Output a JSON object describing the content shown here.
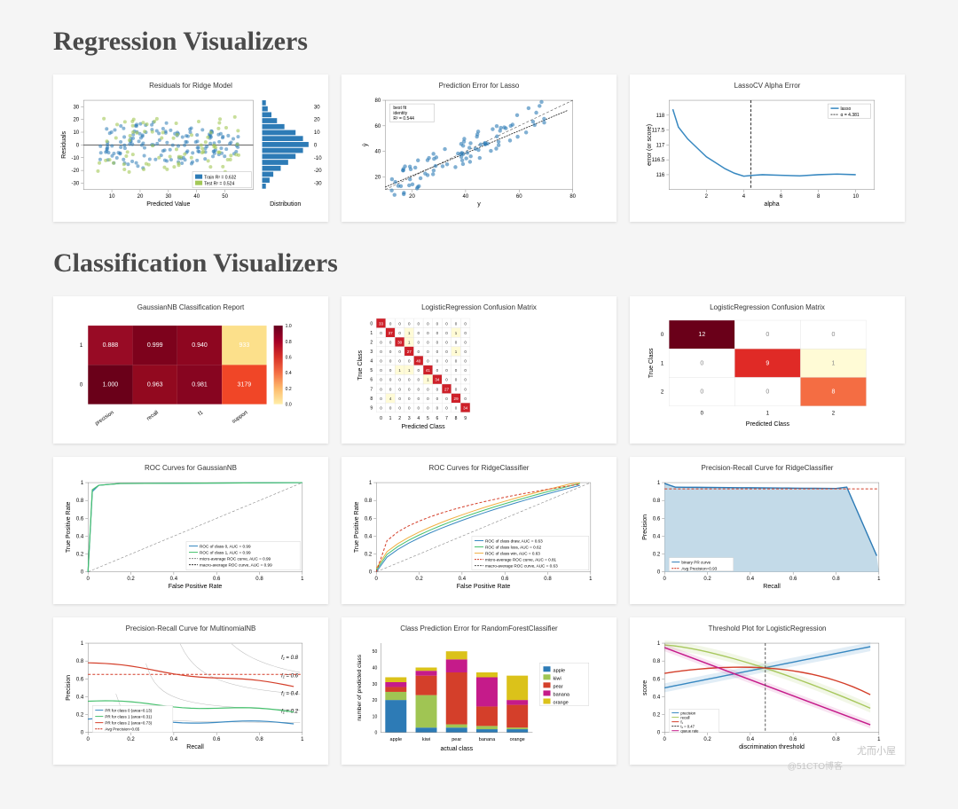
{
  "sections": {
    "regression": {
      "heading": "Regression Visualizers"
    },
    "classification": {
      "heading": "Classification Visualizers"
    }
  },
  "watermark": {
    "main": "尤而小屋",
    "sub": "@51CTO博客"
  },
  "regression_charts": {
    "residuals": {
      "type": "scatter+hist",
      "title": "Residuals for Ridge Model",
      "xlabel": "Predicted Value",
      "ylabel": "Residuals",
      "ylabel2": "Distribution",
      "xlim": [
        0,
        60
      ],
      "ylim": [
        -35,
        35
      ],
      "xticks": [
        10,
        20,
        30,
        40,
        50
      ],
      "yticks": [
        -30,
        -20,
        -10,
        0,
        10,
        20,
        30
      ],
      "train_color": "#2d7bb6",
      "test_color": "#a3c857",
      "legend": [
        "Train R² = 0.632",
        "Test R² = 0.524"
      ],
      "hist_bins": [
        2,
        3,
        5,
        8,
        12,
        18,
        22,
        25,
        22,
        18,
        14,
        10,
        6,
        4,
        2
      ]
    },
    "pred_error": {
      "type": "scatter",
      "title": "Prediction Error for Lasso",
      "xlabel": "y",
      "ylabel": "ŷ",
      "xlim": [
        10,
        80
      ],
      "ylim": [
        10,
        80
      ],
      "xticks": [
        20,
        40,
        60,
        80
      ],
      "yticks": [
        20,
        40,
        60,
        80
      ],
      "point_color": "#2d7bb6",
      "legend": [
        "best fit",
        "identity",
        "R² = 0.544"
      ]
    },
    "alpha_error": {
      "type": "line",
      "title": "LassoCV Alpha Error",
      "xlabel": "alpha",
      "ylabel": "error (or score)",
      "xlim": [
        0,
        11
      ],
      "ylim": [
        115.5,
        118.5
      ],
      "xticks": [
        2,
        4,
        6,
        8,
        10
      ],
      "yticks": [
        116,
        116.5,
        117,
        117.5,
        118
      ],
      "line_color": "#3989c1",
      "alpha_line": 4.381,
      "legend": [
        "lasso",
        "α = 4.381"
      ],
      "values": [
        [
          0.2,
          118.2
        ],
        [
          0.5,
          117.6
        ],
        [
          1,
          117.2
        ],
        [
          1.5,
          116.9
        ],
        [
          2,
          116.6
        ],
        [
          2.5,
          116.4
        ],
        [
          3,
          116.2
        ],
        [
          3.5,
          116.05
        ],
        [
          4,
          115.95
        ],
        [
          4.5,
          115.98
        ],
        [
          5,
          116.0
        ],
        [
          6,
          115.98
        ],
        [
          7,
          115.96
        ],
        [
          8,
          116.0
        ],
        [
          9,
          116.02
        ],
        [
          10,
          116.0
        ]
      ]
    }
  },
  "classification_charts": {
    "class_report": {
      "type": "heatmap",
      "title": "GaussianNB Classification Report",
      "rows": [
        [
          "0.888",
          "0.999",
          "0.940",
          "933"
        ],
        [
          "1.000",
          "0.963",
          "0.981",
          "3179"
        ]
      ],
      "cell_colors": [
        [
          "#980b25",
          "#7d021c",
          "#8e0620",
          "#fce08b"
        ],
        [
          "#6a0019",
          "#92091f",
          "#870520",
          "#f04627"
        ]
      ],
      "xlabels": [
        "precision",
        "recall",
        "f1",
        "support"
      ],
      "ylabels": [
        "1",
        "0"
      ],
      "colorbar": {
        "min": 0,
        "max": 1,
        "ticks": [
          0,
          0.2,
          0.4,
          0.6,
          0.8,
          1.0
        ],
        "colors": [
          "#ffeea8",
          "#fdbb6c",
          "#f46d43",
          "#d73027",
          "#a50026",
          "#67001f"
        ]
      }
    },
    "conf_matrix_multi": {
      "type": "confusion_matrix",
      "title": "LogisticRegression Confusion Matrix",
      "xlabel": "Predicted Class",
      "ylabel": "True Class",
      "xlabels": [
        "0",
        "1",
        "2",
        "3",
        "4",
        "5",
        "6",
        "7",
        "8",
        "9"
      ],
      "ylabels": [
        "0",
        "1",
        "2",
        "3",
        "4",
        "5",
        "6",
        "7",
        "8",
        "9"
      ],
      "cells": [
        [
          33,
          0,
          0,
          0,
          0,
          0,
          0,
          0,
          0,
          0
        ],
        [
          0,
          37,
          0,
          1,
          0,
          0,
          0,
          0,
          1,
          0
        ],
        [
          0,
          0,
          30,
          1,
          0,
          0,
          0,
          0,
          0,
          0
        ],
        [
          0,
          0,
          0,
          27,
          0,
          0,
          0,
          0,
          1,
          0
        ],
        [
          0,
          0,
          0,
          0,
          40,
          0,
          0,
          0,
          0,
          0
        ],
        [
          0,
          0,
          1,
          1,
          0,
          41,
          0,
          0,
          0,
          0
        ],
        [
          0,
          0,
          0,
          0,
          0,
          1,
          34,
          0,
          0,
          0
        ],
        [
          0,
          0,
          0,
          0,
          0,
          0,
          0,
          27,
          0,
          0
        ],
        [
          0,
          4,
          0,
          0,
          0,
          0,
          0,
          0,
          29,
          0
        ],
        [
          0,
          0,
          0,
          0,
          0,
          0,
          0,
          0,
          0,
          34
        ]
      ],
      "diag_color": "#ce2029",
      "off_color": "#fffbd6",
      "zero_color": "#ffffff"
    },
    "conf_matrix_3": {
      "type": "confusion_matrix",
      "title": "LogisticRegression Confusion Matrix",
      "xlabel": "Predicted Class",
      "ylabel": "True Class",
      "xlabels": [
        "0",
        "1",
        "2"
      ],
      "ylabels": [
        "0",
        "1",
        "2"
      ],
      "cells": [
        [
          12,
          0,
          0
        ],
        [
          0,
          9,
          1
        ],
        [
          0,
          0,
          8
        ]
      ],
      "cell_colors": [
        [
          "#6a0019",
          "#fff",
          "#fff"
        ],
        [
          "#fff",
          "#e02a26",
          "#fffbd6"
        ],
        [
          "#fff",
          "#fff",
          "#f46d43"
        ]
      ]
    },
    "roc_nb": {
      "type": "roc",
      "title": "ROC Curves for GaussianNB",
      "xlabel": "False Positive Rate",
      "ylabel": "True Positive Rate",
      "xlim": [
        0,
        1
      ],
      "ylim": [
        0,
        1
      ],
      "xticks": [
        0,
        0.2,
        0.4,
        0.6,
        0.8,
        1.0
      ],
      "yticks": [
        0,
        0.2,
        0.4,
        0.6,
        0.8,
        1.0
      ],
      "legend": [
        "ROC of class 0, AUC = 0.99",
        "ROC of class 1, AUC = 0.99",
        "micro-average ROC curve, AUC = 0.99",
        "macro-average ROC curve, AUC = 0.99"
      ],
      "colors": [
        "#3989c1",
        "#47c16e",
        "#888",
        "#333"
      ]
    },
    "roc_ridge": {
      "type": "roc",
      "title": "ROC Curves for RidgeClassifier",
      "xlabel": "False Positive Rate",
      "ylabel": "True Positive Rate",
      "xlim": [
        0,
        1
      ],
      "ylim": [
        0,
        1
      ],
      "xticks": [
        0,
        0.2,
        0.4,
        0.6,
        0.8,
        1.0
      ],
      "yticks": [
        0,
        0.2,
        0.4,
        0.6,
        0.8,
        1.0
      ],
      "legend": [
        "ROC of class draw, AUC = 0.63",
        "ROC of class loss, AUC = 0.62",
        "ROC of class win, AUC = 0.63",
        "micro-average ROC curve, AUC = 0.81",
        "macro-average ROC curve, AUC = 0.63"
      ],
      "colors": [
        "#3989c1",
        "#47c16e",
        "#f0b042",
        "#d43f2a",
        "#555"
      ]
    },
    "pr_ridge": {
      "type": "pr_curve",
      "title": "Precision-Recall Curve for RidgeClassifier",
      "xlabel": "Recall",
      "ylabel": "Precision",
      "xlim": [
        0,
        1
      ],
      "ylim": [
        0,
        1
      ],
      "xticks": [
        0,
        0.2,
        0.4,
        0.6,
        0.8,
        1.0
      ],
      "yticks": [
        0,
        0.2,
        0.4,
        0.6,
        0.8,
        1.0
      ],
      "fill_color": "#bcd6e6",
      "line_color": "#2d7bb6",
      "avg_precision": 0.93,
      "legend": [
        "binary PR curve",
        "Avg Precision=0.93"
      ]
    },
    "pr_multi": {
      "type": "pr_curve_multi",
      "title": "Precision-Recall Curve for MultinomialNB",
      "xlabel": "Recall",
      "ylabel": "Precision",
      "xlim": [
        0,
        1
      ],
      "ylim": [
        0,
        1
      ],
      "xticks": [
        0,
        0.2,
        0.4,
        0.6,
        0.8,
        1.0
      ],
      "yticks": [
        0,
        0.2,
        0.4,
        0.6,
        0.8,
        1.0
      ],
      "iso_labels": [
        "f₁ = 0.8",
        "f₁ = 0.6",
        "f₁ = 0.4",
        "f₁ = 0.2"
      ],
      "legend": [
        "PR for class 0 (area=0.13)",
        "PR for class 1 (area=0.31)",
        "PR for class 2 (area=0.73)",
        "Avg Precision=0.65"
      ],
      "colors": [
        "#3989c1",
        "#47c16e",
        "#d43f2a",
        "#d43f2a"
      ]
    },
    "class_pred_error": {
      "type": "stacked_bar",
      "title": "Class Prediction Error for RandomForestClassifier",
      "xlabel": "actual class",
      "ylabel": "number of predicted class",
      "categories": [
        "apple",
        "kiwi",
        "pear",
        "banana",
        "orange"
      ],
      "legend": [
        "apple",
        "kiwi",
        "pear",
        "banana",
        "orange"
      ],
      "colors": [
        "#2d7bb6",
        "#a0c553",
        "#d43f2a",
        "#c51b8a",
        "#dbc21a"
      ],
      "stacks": [
        [
          20,
          5,
          3,
          3,
          3
        ],
        [
          3,
          20,
          12,
          3,
          2
        ],
        [
          3,
          2,
          32,
          8,
          5
        ],
        [
          2,
          2,
          12,
          18,
          3
        ],
        [
          2,
          1,
          14,
          3,
          15
        ]
      ]
    },
    "threshold": {
      "type": "threshold",
      "title": "Threshold Plot for LogisticRegression",
      "xlabel": "discrimination threshold",
      "ylabel": "score",
      "xlim": [
        0,
        1
      ],
      "ylim": [
        0,
        1
      ],
      "xticks": [
        0,
        0.2,
        0.4,
        0.6,
        0.8,
        1.0
      ],
      "yticks": [
        0,
        0.2,
        0.4,
        0.6,
        0.8,
        1.0
      ],
      "legend": [
        "precision",
        "recall",
        "f₁",
        "t₁ = 0.47",
        "queue rate"
      ],
      "colors": [
        "#3989c1",
        "#a8c85e",
        "#d43f2a",
        "#333",
        "#c51b8a"
      ],
      "tline": 0.47
    }
  }
}
